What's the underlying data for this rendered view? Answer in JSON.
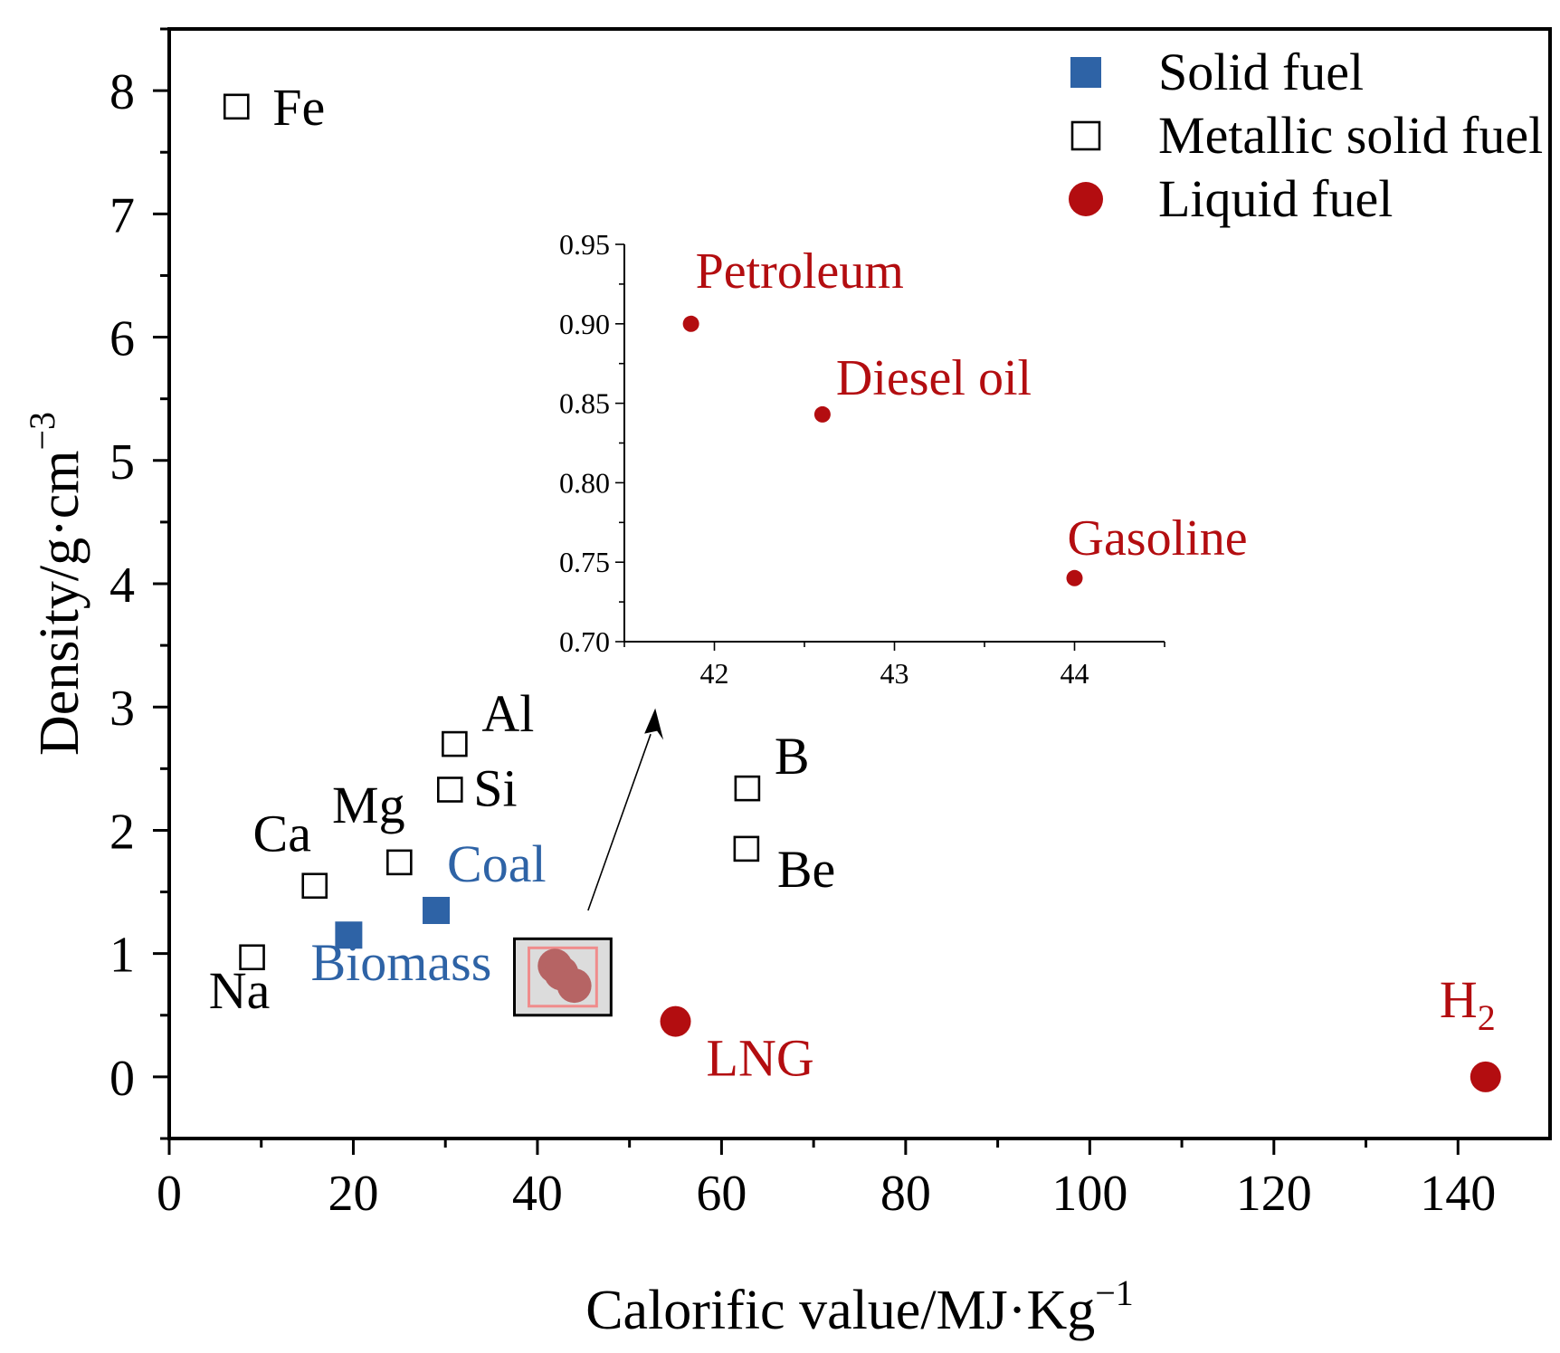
{
  "chart_data": [
    {
      "type": "scatter",
      "xlabel": "Calorific value/MJ·Kg",
      "xlabel_sup": "−1",
      "ylabel": "Density/g·cm",
      "ylabel_sup": "−3",
      "xlim": [
        0,
        150
      ],
      "ylim": [
        -0.5,
        8.5
      ],
      "x_ticks": [
        0,
        20,
        40,
        60,
        80,
        100,
        120,
        140
      ],
      "y_ticks": [
        0,
        1,
        2,
        3,
        4,
        5,
        6,
        7,
        8
      ],
      "grid": false,
      "legend_position": "top-right",
      "colors": {
        "solid": "#2e63a6",
        "metallic": "#000000",
        "liquid": "#b30d10",
        "axis": "#000000"
      },
      "series": [
        {
          "name": "Solid fuel",
          "marker": "filled-square",
          "color": "#2e63a6",
          "points": [
            {
              "label": "Biomass",
              "x": 19.5,
              "y": 1.15
            },
            {
              "label": "Coal",
              "x": 29,
              "y": 1.35
            }
          ]
        },
        {
          "name": "Metallic solid fuel",
          "marker": "open-square",
          "color": "#000000",
          "points": [
            {
              "label": "Fe",
              "x": 7.3,
              "y": 7.87
            },
            {
              "label": "Na",
              "x": 9,
              "y": 0.97
            },
            {
              "label": "Ca",
              "x": 15.8,
              "y": 1.55
            },
            {
              "label": "Mg",
              "x": 25,
              "y": 1.74
            },
            {
              "label": "Si",
              "x": 30.5,
              "y": 2.33
            },
            {
              "label": "Al",
              "x": 31,
              "y": 2.7
            },
            {
              "label": "B",
              "x": 62.8,
              "y": 2.34
            },
            {
              "label": "Be",
              "x": 62.7,
              "y": 1.85
            }
          ]
        },
        {
          "name": "Liquid fuel",
          "marker": "filled-circle",
          "color": "#b30d10",
          "points": [
            {
              "label": "LNG",
              "x": 55,
              "y": 0.45
            },
            {
              "label": "H",
              "label_sub": "2",
              "x": 143,
              "y": 0.0
            },
            {
              "label": "",
              "x": 41.9,
              "y": 0.9
            },
            {
              "label": "",
              "x": 42.6,
              "y": 0.84
            },
            {
              "label": "",
              "x": 44,
              "y": 0.74
            }
          ]
        }
      ]
    },
    {
      "type": "scatter",
      "xlim": [
        41.5,
        44.5
      ],
      "ylim": [
        0.7,
        0.95
      ],
      "x_ticks": [
        42,
        43,
        44
      ],
      "y_ticks": [
        "0.70",
        "0.75",
        "0.80",
        "0.85",
        "0.90",
        "0.95"
      ],
      "grid": false,
      "color": "#b30d10",
      "points": [
        {
          "label": "Petroleum",
          "x": 41.87,
          "y": 0.9
        },
        {
          "label": "Diesel oil",
          "x": 42.6,
          "y": 0.843
        },
        {
          "label": "Gasoline",
          "x": 44,
          "y": 0.74
        }
      ]
    }
  ]
}
